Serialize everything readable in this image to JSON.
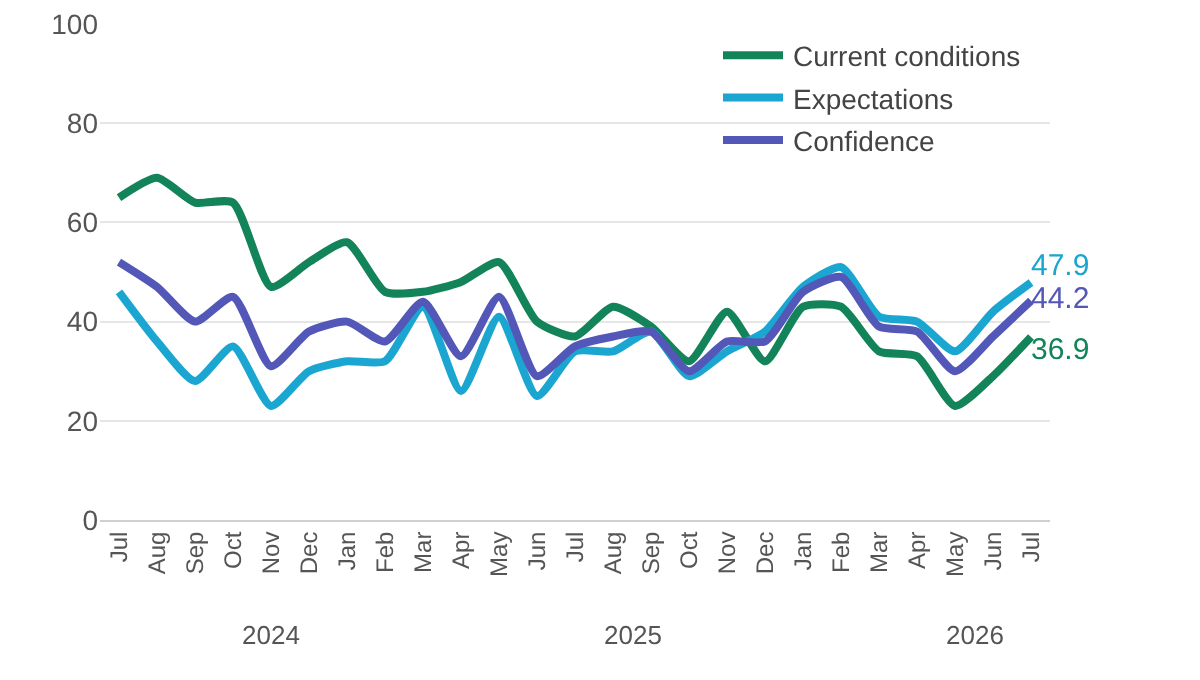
{
  "chart_data": {
    "type": "line",
    "categories": [
      "Jul",
      "Aug",
      "Sep",
      "Oct",
      "Nov",
      "Dec",
      "Jan",
      "Feb",
      "Mar",
      "Apr",
      "May",
      "Jun",
      "Jul",
      "Aug",
      "Sep",
      "Oct",
      "Nov",
      "Dec",
      "Jan",
      "Feb",
      "Mar",
      "Apr",
      "May",
      "Jun",
      "Jul"
    ],
    "series": [
      {
        "name": "Current conditions",
        "color": "#13845a",
        "values": [
          65,
          69,
          64,
          64,
          47,
          52,
          56,
          46,
          46,
          48,
          52,
          40,
          37,
          43,
          39,
          32,
          42,
          32,
          43,
          43,
          34,
          33,
          23,
          29,
          36.9
        ],
        "value_labels": [
          null,
          null,
          null,
          null,
          null,
          null,
          null,
          null,
          null,
          null,
          null,
          null,
          null,
          null,
          null,
          null,
          null,
          null,
          null,
          null,
          null,
          null,
          null,
          null,
          "36.9"
        ]
      },
      {
        "name": "Expectations",
        "color": "#1aa6d0",
        "values": [
          46,
          36,
          28,
          35,
          23,
          30,
          32,
          32,
          43,
          26,
          41,
          25,
          34,
          34,
          38,
          29,
          34,
          38,
          47,
          51,
          41,
          40,
          34,
          42,
          47.9
        ],
        "value_labels": [
          null,
          null,
          null,
          null,
          null,
          null,
          null,
          null,
          null,
          null,
          null,
          null,
          null,
          null,
          null,
          null,
          null,
          null,
          null,
          null,
          null,
          null,
          null,
          null,
          "47.9"
        ]
      },
      {
        "name": "Confidence",
        "color": "#5257b8",
        "values": [
          52,
          47,
          40,
          45,
          31,
          38,
          40,
          36,
          44,
          33,
          45,
          29,
          35,
          37,
          38,
          30,
          36,
          36,
          46,
          49,
          39,
          38,
          30,
          37,
          44.2
        ],
        "value_labels": [
          null,
          null,
          null,
          null,
          null,
          null,
          null,
          null,
          null,
          null,
          null,
          null,
          null,
          null,
          null,
          null,
          null,
          null,
          null,
          null,
          null,
          null,
          null,
          null,
          "44.2"
        ]
      }
    ],
    "annotations": [
      "2024",
      "2025",
      "2026"
    ],
    "ylim": [
      0,
      100
    ],
    "yticks": [
      0,
      20,
      40,
      60,
      80,
      100
    ],
    "grid": "y",
    "legend": "top right",
    "marker": "none",
    "line_style": "solid"
  }
}
